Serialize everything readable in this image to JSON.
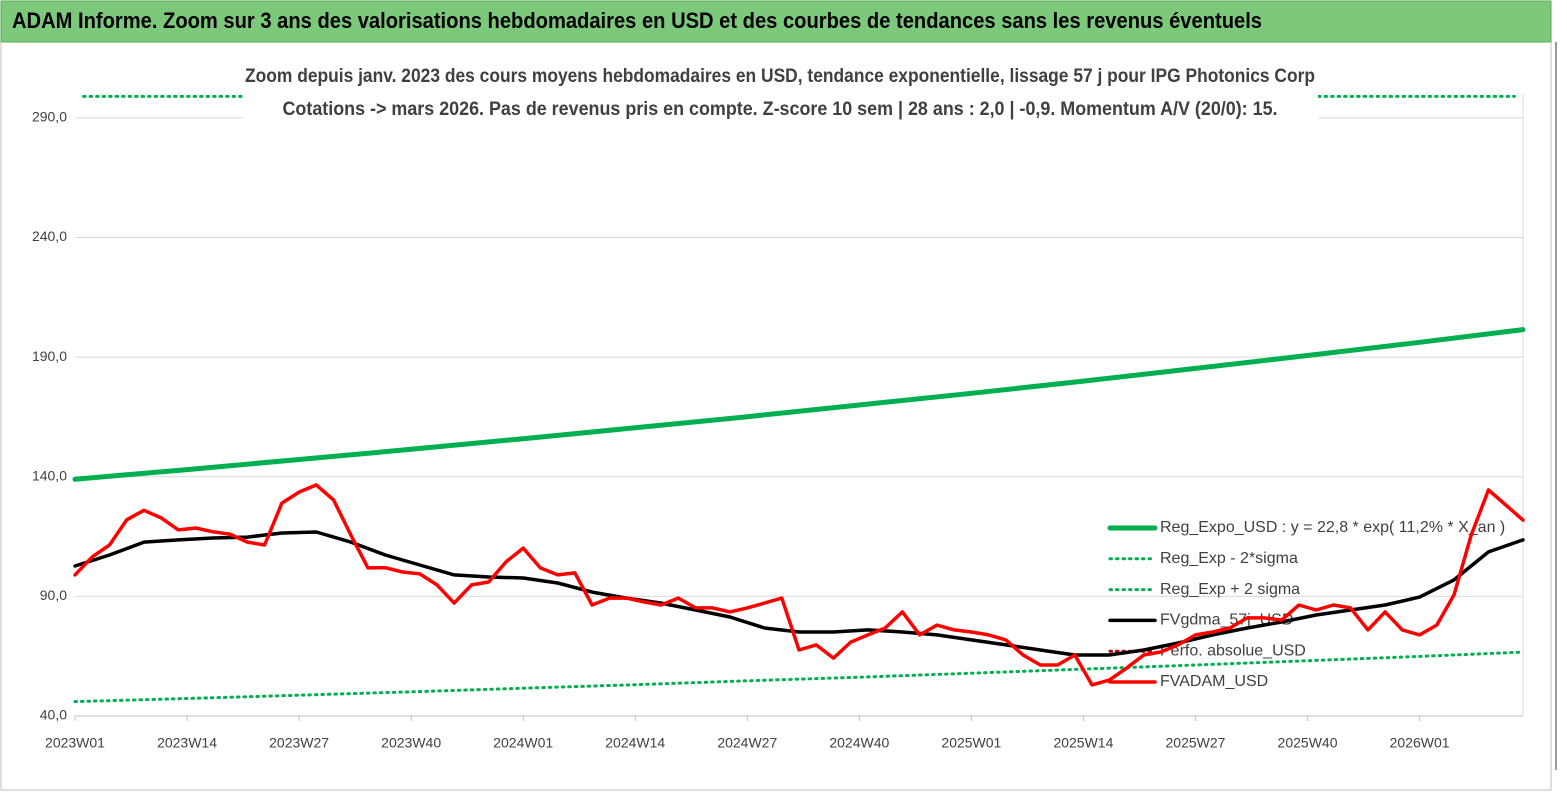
{
  "header": {
    "title": "ADAM Informe. Zoom sur 3 ans des valorisations hebdomadaires en USD et des courbes de tendances sans les revenus éventuels"
  },
  "chart_data": {
    "type": "line",
    "title": "Zoom depuis janv. 2023 des cours moyens hebdomadaires en USD, tendance exponentielle, lissage 57 j pour IPG Photonics Corp",
    "subtitle": "Cotations -> mars 2026. Pas de revenus pris en compte. Z-score 10 sem | 28 ans : 2,0 | -0,9. Momentum A/V (20/0): 15.",
    "xlim": [
      0,
      168
    ],
    "xticks": [
      {
        "value": 0,
        "label": "2023W01"
      },
      {
        "value": 13,
        "label": "2023W14"
      },
      {
        "value": 26,
        "label": "2023W27"
      },
      {
        "value": 39,
        "label": "2023W40"
      },
      {
        "value": 52,
        "label": "2024W01"
      },
      {
        "value": 65,
        "label": "2024W14"
      },
      {
        "value": 78,
        "label": "2024W27"
      },
      {
        "value": 91,
        "label": "2024W40"
      },
      {
        "value": 104,
        "label": "2025W01"
      },
      {
        "value": 117,
        "label": "2025W14"
      },
      {
        "value": 130,
        "label": "2025W27"
      },
      {
        "value": 143,
        "label": "2025W40"
      },
      {
        "value": 156,
        "label": "2026W01"
      }
    ],
    "ylim": [
      40,
      300
    ],
    "yticks": [
      {
        "value": 40,
        "label": "40,0"
      },
      {
        "value": 90,
        "label": "90,0"
      },
      {
        "value": 140,
        "label": "140,0"
      },
      {
        "value": 190,
        "label": "190,0"
      },
      {
        "value": 240,
        "label": "240,0"
      },
      {
        "value": 290,
        "label": "290,0"
      }
    ],
    "grid": true,
    "legend": "right",
    "series": [
      {
        "name": "Reg_Expo_USD : y = 22,8 * exp( 11,2% * X_an )",
        "color": "#00b050",
        "dash": "solid",
        "width": 5,
        "x": [
          0,
          13,
          26,
          39,
          52,
          65,
          78,
          91,
          104,
          117,
          130,
          143,
          156,
          168
        ],
        "values": [
          139,
          143,
          147.2,
          151.5,
          155.9,
          160.5,
          165.1,
          170,
          174.9,
          180,
          185.3,
          190.7,
          196.2,
          201.5
        ]
      },
      {
        "name": "Reg_Exp - 2*sigma",
        "color": "#00b050",
        "dash": "dotted",
        "width": 3,
        "x": [
          0,
          13,
          26,
          39,
          52,
          65,
          78,
          91,
          104,
          117,
          130,
          143,
          156,
          168
        ],
        "values": [
          46,
          47.3,
          48.7,
          50.1,
          51.6,
          53.1,
          54.7,
          56.2,
          57.9,
          59.6,
          61.3,
          63.1,
          64.9,
          66.7
        ]
      },
      {
        "name": "Reg_Exp + 2 sigma",
        "color": "#00b050",
        "dash": "dotted",
        "width": 3,
        "x": [
          1,
          167
        ],
        "values": [
          299,
          299
        ]
      },
      {
        "name": "FVgdma_57j_USD",
        "color": "#000000",
        "dash": "solid",
        "width": 3.5,
        "x": [
          0,
          4,
          8,
          12,
          16,
          20,
          24,
          28,
          32,
          36,
          40,
          44,
          48,
          52,
          56,
          60,
          64,
          68,
          72,
          76,
          80,
          84,
          88,
          92,
          96,
          100,
          104,
          108,
          112,
          116,
          120,
          124,
          128,
          132,
          136,
          140,
          144,
          148,
          152,
          156,
          160,
          164,
          168
        ],
        "values": [
          102.7,
          107.3,
          112.7,
          113.6,
          114.4,
          114.8,
          116.5,
          116.9,
          112.7,
          107.3,
          103.1,
          99,
          98.1,
          97.7,
          95.6,
          91.8,
          89.3,
          87.2,
          84.3,
          81.4,
          76.8,
          75.1,
          75.1,
          76,
          75.1,
          73.9,
          71.8,
          69.7,
          67.6,
          65.5,
          65.5,
          67.6,
          70.5,
          73.9,
          76.8,
          79.3,
          82.2,
          84.3,
          86.4,
          89.7,
          96.9,
          108.6,
          113.6
        ]
      },
      {
        "name": "Perfo. absolue_USD",
        "color": "#c00000",
        "dash": "dotted",
        "width": 3,
        "x": [],
        "values": []
      },
      {
        "name": "FVADAM_USD",
        "color": "#ff0000",
        "dash": "solid",
        "width": 3.5,
        "x": [
          0,
          2,
          4,
          6,
          8,
          10,
          12,
          14,
          16,
          18,
          20,
          22,
          24,
          26,
          28,
          30,
          32,
          34,
          36,
          38,
          40,
          42,
          44,
          46,
          48,
          50,
          52,
          54,
          56,
          58,
          60,
          62,
          64,
          66,
          68,
          70,
          72,
          74,
          76,
          78,
          80,
          82,
          84,
          86,
          88,
          90,
          92,
          94,
          96,
          98,
          100,
          102,
          104,
          106,
          108,
          110,
          112,
          114,
          116,
          118,
          120,
          122,
          124,
          126,
          128,
          130,
          132,
          134,
          136,
          138,
          140,
          142,
          144,
          146,
          148,
          150,
          152,
          154,
          156,
          158,
          160,
          162,
          164,
          166,
          168
        ],
        "values": [
          99,
          106.5,
          111.5,
          122,
          126,
          122.8,
          117.8,
          118.6,
          117,
          116,
          112.7,
          111.5,
          129,
          133.6,
          136.6,
          130.3,
          115.7,
          101.9,
          102,
          100.2,
          99.4,
          94.8,
          87.2,
          94.8,
          96,
          104.4,
          110.2,
          101.9,
          99,
          99.8,
          86.4,
          89.3,
          89.3,
          87.7,
          86.4,
          89.3,
          85.2,
          85.2,
          83.5,
          85.2,
          87.2,
          89.3,
          67.6,
          69.7,
          64.2,
          70.9,
          73.9,
          76.8,
          83.5,
          73.9,
          78,
          76,
          75.1,
          73.9,
          71.8,
          65.5,
          61.3,
          61.3,
          65.5,
          53,
          55,
          60,
          65.5,
          66.8,
          69.7,
          73.9,
          75.1,
          76.8,
          81,
          81,
          80.1,
          86.4,
          84.3,
          86.4,
          85.2,
          76,
          83.5,
          76,
          73.9,
          78,
          90.6,
          115.7,
          134.5,
          128.2,
          121.9
        ]
      }
    ]
  }
}
